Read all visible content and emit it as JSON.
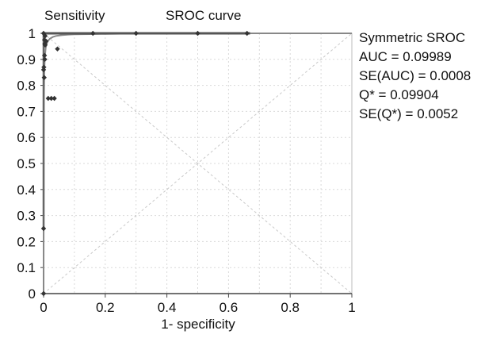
{
  "chart_data": {
    "type": "scatter",
    "title": "SROC curve",
    "ylabel": "Sensitivity",
    "xlabel": "1- specificity",
    "xlim": [
      0,
      1
    ],
    "ylim": [
      0,
      1
    ],
    "x_ticks": [
      "0",
      "0.2",
      "0.4",
      "0.6",
      "0.8",
      "1"
    ],
    "y_ticks": [
      "0",
      "0.1",
      "0.2",
      "0.3",
      "0.4",
      "0.5",
      "0.6",
      "0.7",
      "0.8",
      "0.9",
      "1"
    ],
    "grid": true,
    "annotations": [
      "Symmetric SROC",
      "AUC = 0.09989",
      "SE(AUC) = 0.0008",
      "Q* = 0.09904",
      "SE(Q*) = 0.0052"
    ],
    "points": [
      {
        "x": 0.0,
        "y": 1.0
      },
      {
        "x": 0.005,
        "y": 0.99
      },
      {
        "x": 0.003,
        "y": 0.975
      },
      {
        "x": 0.008,
        "y": 0.97
      },
      {
        "x": 0.004,
        "y": 0.96
      },
      {
        "x": 0.005,
        "y": 0.955
      },
      {
        "x": 0.003,
        "y": 0.915
      },
      {
        "x": 0.004,
        "y": 0.9
      },
      {
        "x": 0.001,
        "y": 0.87
      },
      {
        "x": 0.0,
        "y": 0.86
      },
      {
        "x": 0.002,
        "y": 0.83
      },
      {
        "x": 0.015,
        "y": 0.75
      },
      {
        "x": 0.025,
        "y": 0.75
      },
      {
        "x": 0.035,
        "y": 0.75
      },
      {
        "x": 0.045,
        "y": 0.94
      },
      {
        "x": 0.0,
        "y": 0.25
      },
      {
        "x": 0.0,
        "y": 0.0
      },
      {
        "x": 0.16,
        "y": 1.0
      },
      {
        "x": 0.3,
        "y": 1.0
      },
      {
        "x": 0.5,
        "y": 1.0
      },
      {
        "x": 0.66,
        "y": 1.0
      }
    ],
    "sroc_curve": [
      [
        0.0,
        0.0
      ],
      [
        0.0005,
        0.6
      ],
      [
        0.001,
        0.75
      ],
      [
        0.002,
        0.85
      ],
      [
        0.004,
        0.91
      ],
      [
        0.007,
        0.945
      ],
      [
        0.01,
        0.96
      ],
      [
        0.015,
        0.972
      ],
      [
        0.02,
        0.979
      ],
      [
        0.03,
        0.986
      ],
      [
        0.04,
        0.99
      ],
      [
        0.06,
        0.993
      ],
      [
        0.08,
        0.995
      ],
      [
        0.1,
        0.996
      ],
      [
        0.15,
        0.997
      ],
      [
        0.2,
        0.998
      ],
      [
        0.3,
        0.999
      ],
      [
        0.5,
        0.9995
      ],
      [
        0.67,
        1.0
      ],
      [
        1.0,
        1.0
      ]
    ]
  }
}
